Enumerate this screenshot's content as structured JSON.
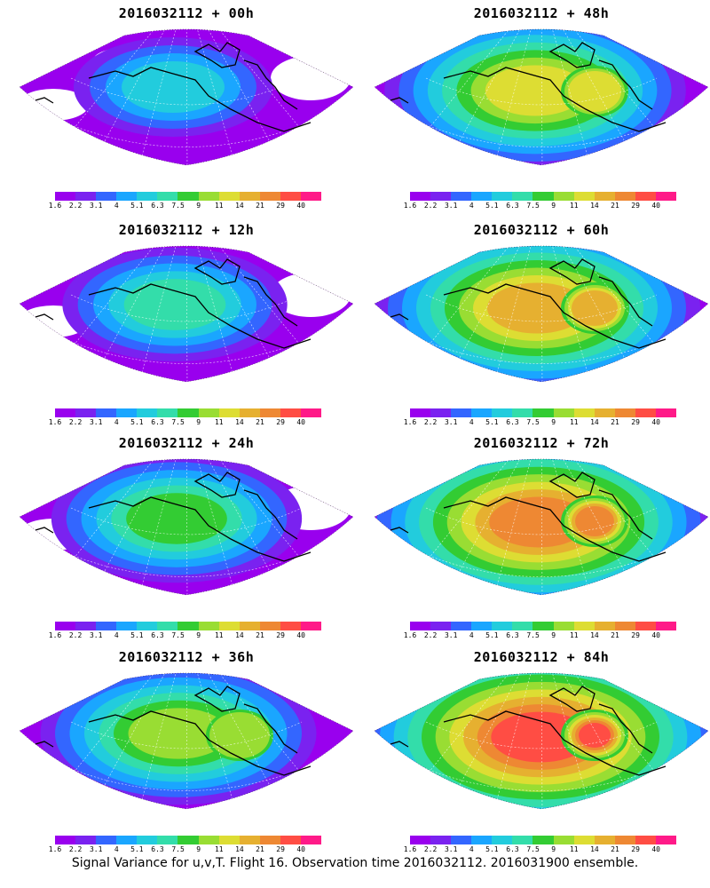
{
  "panels": [
    {
      "title": "2016032112 + 00h",
      "level": 0
    },
    {
      "title": "2016032112 + 48h",
      "level": 4
    },
    {
      "title": "2016032112 + 12h",
      "level": 1
    },
    {
      "title": "2016032112 + 60h",
      "level": 5
    },
    {
      "title": "2016032112 + 24h",
      "level": 2
    },
    {
      "title": "2016032112 + 72h",
      "level": 6
    },
    {
      "title": "2016032112 + 36h",
      "level": 3
    },
    {
      "title": "2016032112 + 84h",
      "level": 7
    }
  ],
  "colorbar": {
    "labels": [
      "1.6",
      "2.2",
      "3.1",
      "4",
      "5.1",
      "6.3",
      "7.5",
      "9",
      "11",
      "14",
      "21",
      "29",
      "40"
    ],
    "colors": [
      "#9900ee",
      "#7a22f0",
      "#3366ff",
      "#1aa6ff",
      "#22ccdd",
      "#33ddaa",
      "#33cc33",
      "#99dd33",
      "#dddd33",
      "#e6b030",
      "#ee8833",
      "#ff4d44",
      "#ff1a88"
    ]
  },
  "footer": "Signal Variance for u,v,T. Flight 16. Observation time 2016032112. 2016031900 ensemble."
}
